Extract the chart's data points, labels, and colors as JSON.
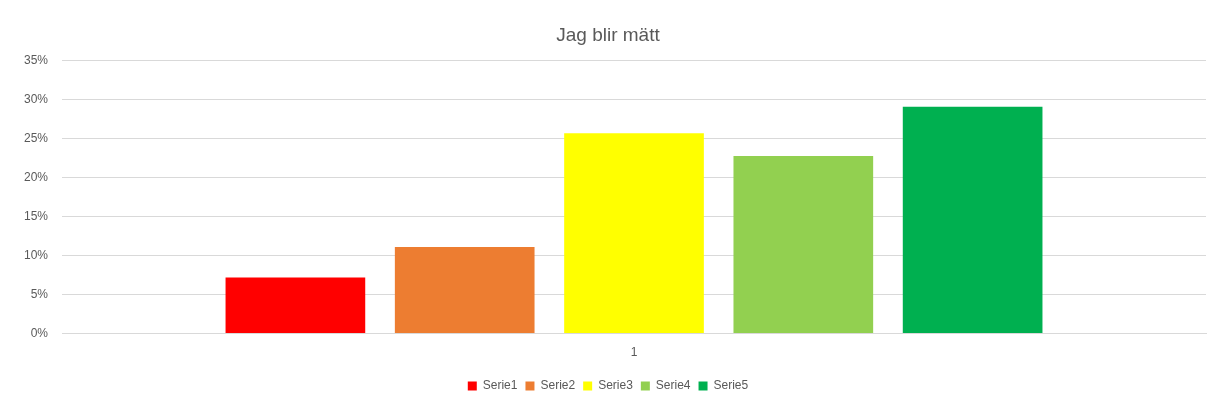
{
  "chart_data": {
    "type": "bar",
    "title": "Jag blir mätt",
    "categories": [
      "1"
    ],
    "series": [
      {
        "name": "Serie1",
        "color": "#ff0000",
        "values": [
          7.2
        ]
      },
      {
        "name": "Serie2",
        "color": "#ed7d31",
        "values": [
          11.1
        ]
      },
      {
        "name": "Serie3",
        "color": "#ffff00",
        "values": [
          25.7
        ]
      },
      {
        "name": "Serie4",
        "color": "#92d050",
        "values": [
          22.8
        ]
      },
      {
        "name": "Serie5",
        "color": "#00b050",
        "values": [
          29.1
        ]
      }
    ],
    "ylim": [
      0,
      35
    ],
    "yticks": [
      {
        "value": 0,
        "label": "0%"
      },
      {
        "value": 5,
        "label": "5%"
      },
      {
        "value": 10,
        "label": "10%"
      },
      {
        "value": 15,
        "label": "15%"
      },
      {
        "value": 20,
        "label": "20%"
      },
      {
        "value": 25,
        "label": "25%"
      },
      {
        "value": 30,
        "label": "30%"
      },
      {
        "value": 35,
        "label": "35%"
      }
    ],
    "grid": "y",
    "legend": "bottom"
  }
}
